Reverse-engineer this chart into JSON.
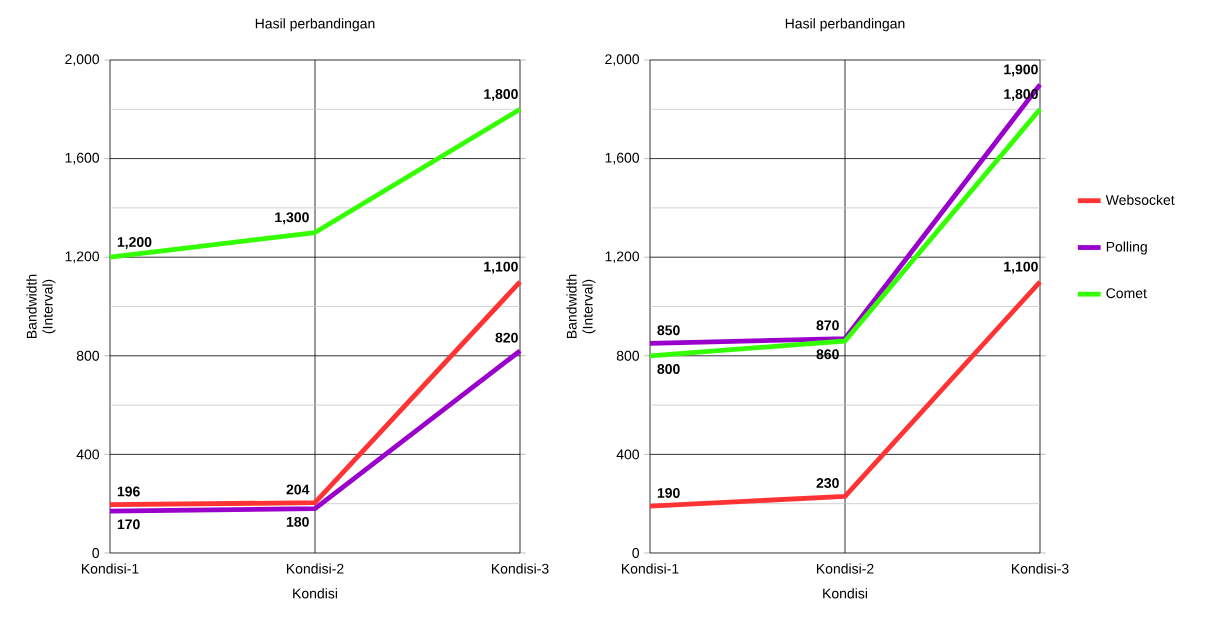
{
  "chart_data": [
    {
      "type": "line",
      "title": "Hasil perbandingan",
      "xlabel": "Kondisi",
      "ylabel": "Bandwidth (Interval)",
      "categories": [
        "Kondisi-1",
        "Kondisi-2",
        "Kondisi-3"
      ],
      "ylim": [
        0,
        2000
      ],
      "yticks": [
        0,
        {
          "value": 400,
          "label": "400"
        },
        {
          "value": 800,
          "label": "800"
        },
        {
          "value": 1200,
          "label": "1,200"
        },
        {
          "value": 1600,
          "label": "1,600"
        },
        {
          "value": 2000,
          "label": "2,000"
        }
      ],
      "grid": true,
      "legend": false,
      "data_labels": true,
      "series": [
        {
          "color": "#ff3333",
          "values": [
            196,
            204,
            1100
          ],
          "value_labels": [
            "196",
            "204",
            "1,100"
          ]
        },
        {
          "color": "#9900cc",
          "values": [
            170,
            180,
            820
          ],
          "value_labels": [
            "170",
            "180",
            "820"
          ]
        },
        {
          "color": "#33ff00",
          "values": [
            1200,
            1300,
            1800
          ],
          "value_labels": [
            "1,200",
            "1,300",
            "1,800"
          ]
        }
      ]
    },
    {
      "type": "line",
      "title": "Hasil perbandingan",
      "xlabel": "Kondisi",
      "ylabel": "Bandwidth (Interval)",
      "categories": [
        "Kondisi-1",
        "Kondisi-2",
        "Kondisi-3"
      ],
      "ylim": [
        0,
        2000
      ],
      "yticks": [
        0,
        {
          "value": 400,
          "label": "400"
        },
        {
          "value": 800,
          "label": "800"
        },
        {
          "value": 1200,
          "label": "1,200"
        },
        {
          "value": 1600,
          "label": "1,600"
        },
        {
          "value": 2000,
          "label": "2,000"
        }
      ],
      "grid": true,
      "legend": "right",
      "data_labels": true,
      "series": [
        {
          "name": "Websocket",
          "color": "#ff3333",
          "values": [
            190,
            230,
            1100
          ],
          "value_labels": [
            "190",
            "230",
            "1,100"
          ]
        },
        {
          "name": "Polling",
          "color": "#9900cc",
          "values": [
            850,
            870,
            1900
          ],
          "value_labels": [
            "850",
            "870",
            "1,900"
          ]
        },
        {
          "name": "Comet",
          "color": "#33ff00",
          "values": [
            800,
            860,
            1800
          ],
          "value_labels": [
            "800",
            "860",
            "1,800"
          ]
        }
      ]
    }
  ]
}
